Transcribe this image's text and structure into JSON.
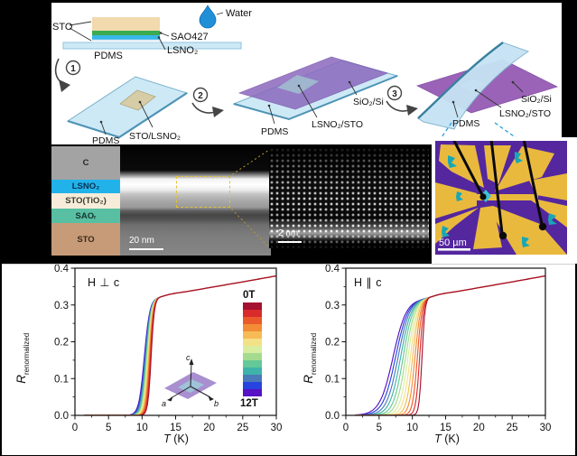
{
  "schematic": {
    "water": "Water",
    "stack_sto": "STO",
    "stack_sao": "SAO427",
    "stack_lsno": "LSNO₂",
    "stack_pdms": "PDMS",
    "step1_num": "1",
    "step2_num": "2",
    "step3_num": "3",
    "s1_pdms": "PDMS",
    "s1_film": "STO/LSNO₂",
    "s2_pdms": "PDMS",
    "s2_film": "LSNO₂/STO",
    "s2_sub": "SiO₂/Si",
    "s3_pdms": "PDMS",
    "s3_film": "LSNO₂/STO",
    "s3_sub": "SiO₂/Si"
  },
  "micrographs": {
    "layers": [
      {
        "label": "C",
        "color": "#a3a3a3",
        "h": 37,
        "text": "#26262e"
      },
      {
        "label": "LSNO₂",
        "color": "#22b2ea",
        "h": 15,
        "text": "#0b2f4e"
      },
      {
        "label": "STO(TiO₂)",
        "color": "#f6ecd9",
        "h": 17,
        "text": "#3a3a30"
      },
      {
        "label": "SAOᵣ",
        "color": "#59bfa3",
        "h": 16,
        "text": "#13362e"
      },
      {
        "label": "STO",
        "color": "#c79b77",
        "h": 36,
        "text": "#3c2a1c"
      }
    ],
    "tem_scale": "20 nm",
    "stem_scale": "2 nm",
    "optical_scale": "50 µm"
  },
  "chart_data": [
    {
      "type": "line",
      "title": "H ⊥ c",
      "xlabel_var": "T",
      "xlabel_unit": " (K)",
      "ylabel_main": "R",
      "ylabel_sub": "renormalized",
      "xlim": [
        0,
        30
      ],
      "ylim": [
        0,
        0.4
      ],
      "xticks": [
        "0",
        "5",
        "10",
        "15",
        "20",
        "25",
        "30"
      ],
      "yticks": [
        "0.0",
        "0.1",
        "0.2",
        "0.3",
        "0.4"
      ],
      "legend_top": "0T",
      "legend_bottom": "12T",
      "inset_axes": [
        "a",
        "b",
        "c"
      ],
      "normal_state_anchors": [
        [
          1.4,
          0.3165
        ],
        [
          11,
          0.318
        ],
        [
          12,
          0.32
        ],
        [
          13,
          0.3235
        ],
        [
          14,
          0.3285
        ],
        [
          15,
          0.332
        ],
        [
          17,
          0.3375
        ],
        [
          20,
          0.347
        ],
        [
          23,
          0.3565
        ],
        [
          26,
          0.366
        ],
        [
          30,
          0.379
        ]
      ],
      "series": [
        {
          "name": "0T",
          "color": "#a41230",
          "tc": 11.35,
          "w": 0.24
        },
        {
          "name": "1T",
          "color": "#d92b2c",
          "tc": 11.26,
          "w": 0.25
        },
        {
          "name": "2T",
          "color": "#ea5a2b",
          "tc": 11.17,
          "w": 0.27
        },
        {
          "name": "3T",
          "color": "#f28d35",
          "tc": 11.08,
          "w": 0.28
        },
        {
          "name": "4T",
          "color": "#f6bb56",
          "tc": 10.99,
          "w": 0.29
        },
        {
          "name": "5T",
          "color": "#f3e187",
          "tc": 10.9,
          "w": 0.31
        },
        {
          "name": "6T",
          "color": "#d9eda0",
          "tc": 10.82,
          "w": 0.32
        },
        {
          "name": "7T",
          "color": "#a5db8e",
          "tc": 10.74,
          "w": 0.33
        },
        {
          "name": "8T",
          "color": "#63c998",
          "tc": 10.66,
          "w": 0.34
        },
        {
          "name": "9T",
          "color": "#3fb3a9",
          "tc": 10.58,
          "w": 0.36
        },
        {
          "name": "10T",
          "color": "#4a7ab8",
          "tc": 10.5,
          "w": 0.37
        },
        {
          "name": "11T",
          "color": "#2744de",
          "tc": 10.42,
          "w": 0.38
        },
        {
          "name": "12T",
          "color": "#5712c4",
          "tc": 10.34,
          "w": 0.4
        }
      ]
    },
    {
      "type": "line",
      "title": "H ∥ c",
      "xlabel_var": "T",
      "xlabel_unit": " (K)",
      "ylabel_main": "R",
      "ylabel_sub": "renormalized",
      "xlim": [
        0,
        30
      ],
      "ylim": [
        0,
        0.4
      ],
      "xticks": [
        "0",
        "5",
        "10",
        "15",
        "20",
        "25",
        "30"
      ],
      "yticks": [
        "0.0",
        "0.1",
        "0.2",
        "0.3",
        "0.4"
      ],
      "normal_state_anchors": [
        [
          1.4,
          0.3165
        ],
        [
          11,
          0.318
        ],
        [
          12,
          0.32
        ],
        [
          13,
          0.3235
        ],
        [
          14,
          0.3285
        ],
        [
          15,
          0.332
        ],
        [
          17,
          0.3375
        ],
        [
          20,
          0.347
        ],
        [
          23,
          0.3565
        ],
        [
          26,
          0.366
        ],
        [
          30,
          0.379
        ]
      ],
      "series": [
        {
          "name": "0T",
          "color": "#a41230",
          "tc": 11.45,
          "w": 0.22
        },
        {
          "name": "1T",
          "color": "#d92b2c",
          "tc": 11.1,
          "w": 0.29
        },
        {
          "name": "2T",
          "color": "#ea5a2b",
          "tc": 10.75,
          "w": 0.35
        },
        {
          "name": "3T",
          "color": "#f28d35",
          "tc": 10.4,
          "w": 0.42
        },
        {
          "name": "4T",
          "color": "#f6bb56",
          "tc": 10.05,
          "w": 0.48
        },
        {
          "name": "5T",
          "color": "#f3e187",
          "tc": 9.7,
          "w": 0.55
        },
        {
          "name": "6T",
          "color": "#d9eda0",
          "tc": 9.35,
          "w": 0.61
        },
        {
          "name": "7T",
          "color": "#a5db8e",
          "tc": 9.0,
          "w": 0.68
        },
        {
          "name": "8T",
          "color": "#63c998",
          "tc": 8.62,
          "w": 0.74
        },
        {
          "name": "9T",
          "color": "#3fb3a9",
          "tc": 8.24,
          "w": 0.81
        },
        {
          "name": "10T",
          "color": "#4a7ab8",
          "tc": 7.86,
          "w": 0.87
        },
        {
          "name": "11T",
          "color": "#2744de",
          "tc": 7.48,
          "w": 0.94
        },
        {
          "name": "12T",
          "color": "#5712c4",
          "tc": 7.1,
          "w": 1.0
        }
      ]
    }
  ]
}
